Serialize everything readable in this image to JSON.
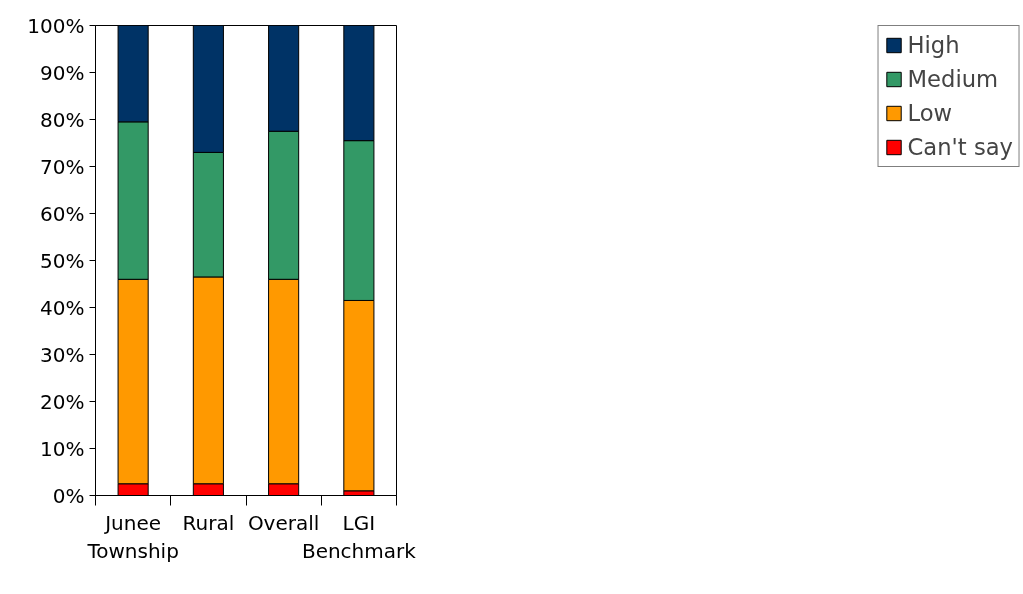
{
  "chart_data": {
    "type": "bar",
    "stacked": true,
    "categories": [
      "Junee Township",
      "Rural",
      "Overall",
      "LGI Benchmark"
    ],
    "series": [
      {
        "name": "Can't say",
        "color": "#ff0000",
        "values": [
          2.5,
          2.5,
          2.5,
          1
        ]
      },
      {
        "name": "Low",
        "color": "#ff9900",
        "values": [
          43.5,
          44,
          43.5,
          40.5
        ]
      },
      {
        "name": "Medium",
        "color": "#339966",
        "values": [
          33.5,
          26.5,
          31.5,
          34
        ]
      },
      {
        "name": "High",
        "color": "#003366",
        "values": [
          20.5,
          27,
          22.5,
          24.5
        ]
      }
    ],
    "ylim": [
      0,
      100
    ],
    "yticks": [
      {
        "value": 0,
        "label": "0%"
      },
      {
        "value": 10,
        "label": "10%"
      },
      {
        "value": 20,
        "label": "20%"
      },
      {
        "value": 30,
        "label": "30%"
      },
      {
        "value": 40,
        "label": "40%"
      },
      {
        "value": 50,
        "label": "50%"
      },
      {
        "value": 60,
        "label": "60%"
      },
      {
        "value": 70,
        "label": "70%"
      },
      {
        "value": 80,
        "label": "80%"
      },
      {
        "value": 90,
        "label": "90%"
      },
      {
        "value": 100,
        "label": "100%"
      }
    ],
    "grid": false,
    "legend": "right"
  }
}
